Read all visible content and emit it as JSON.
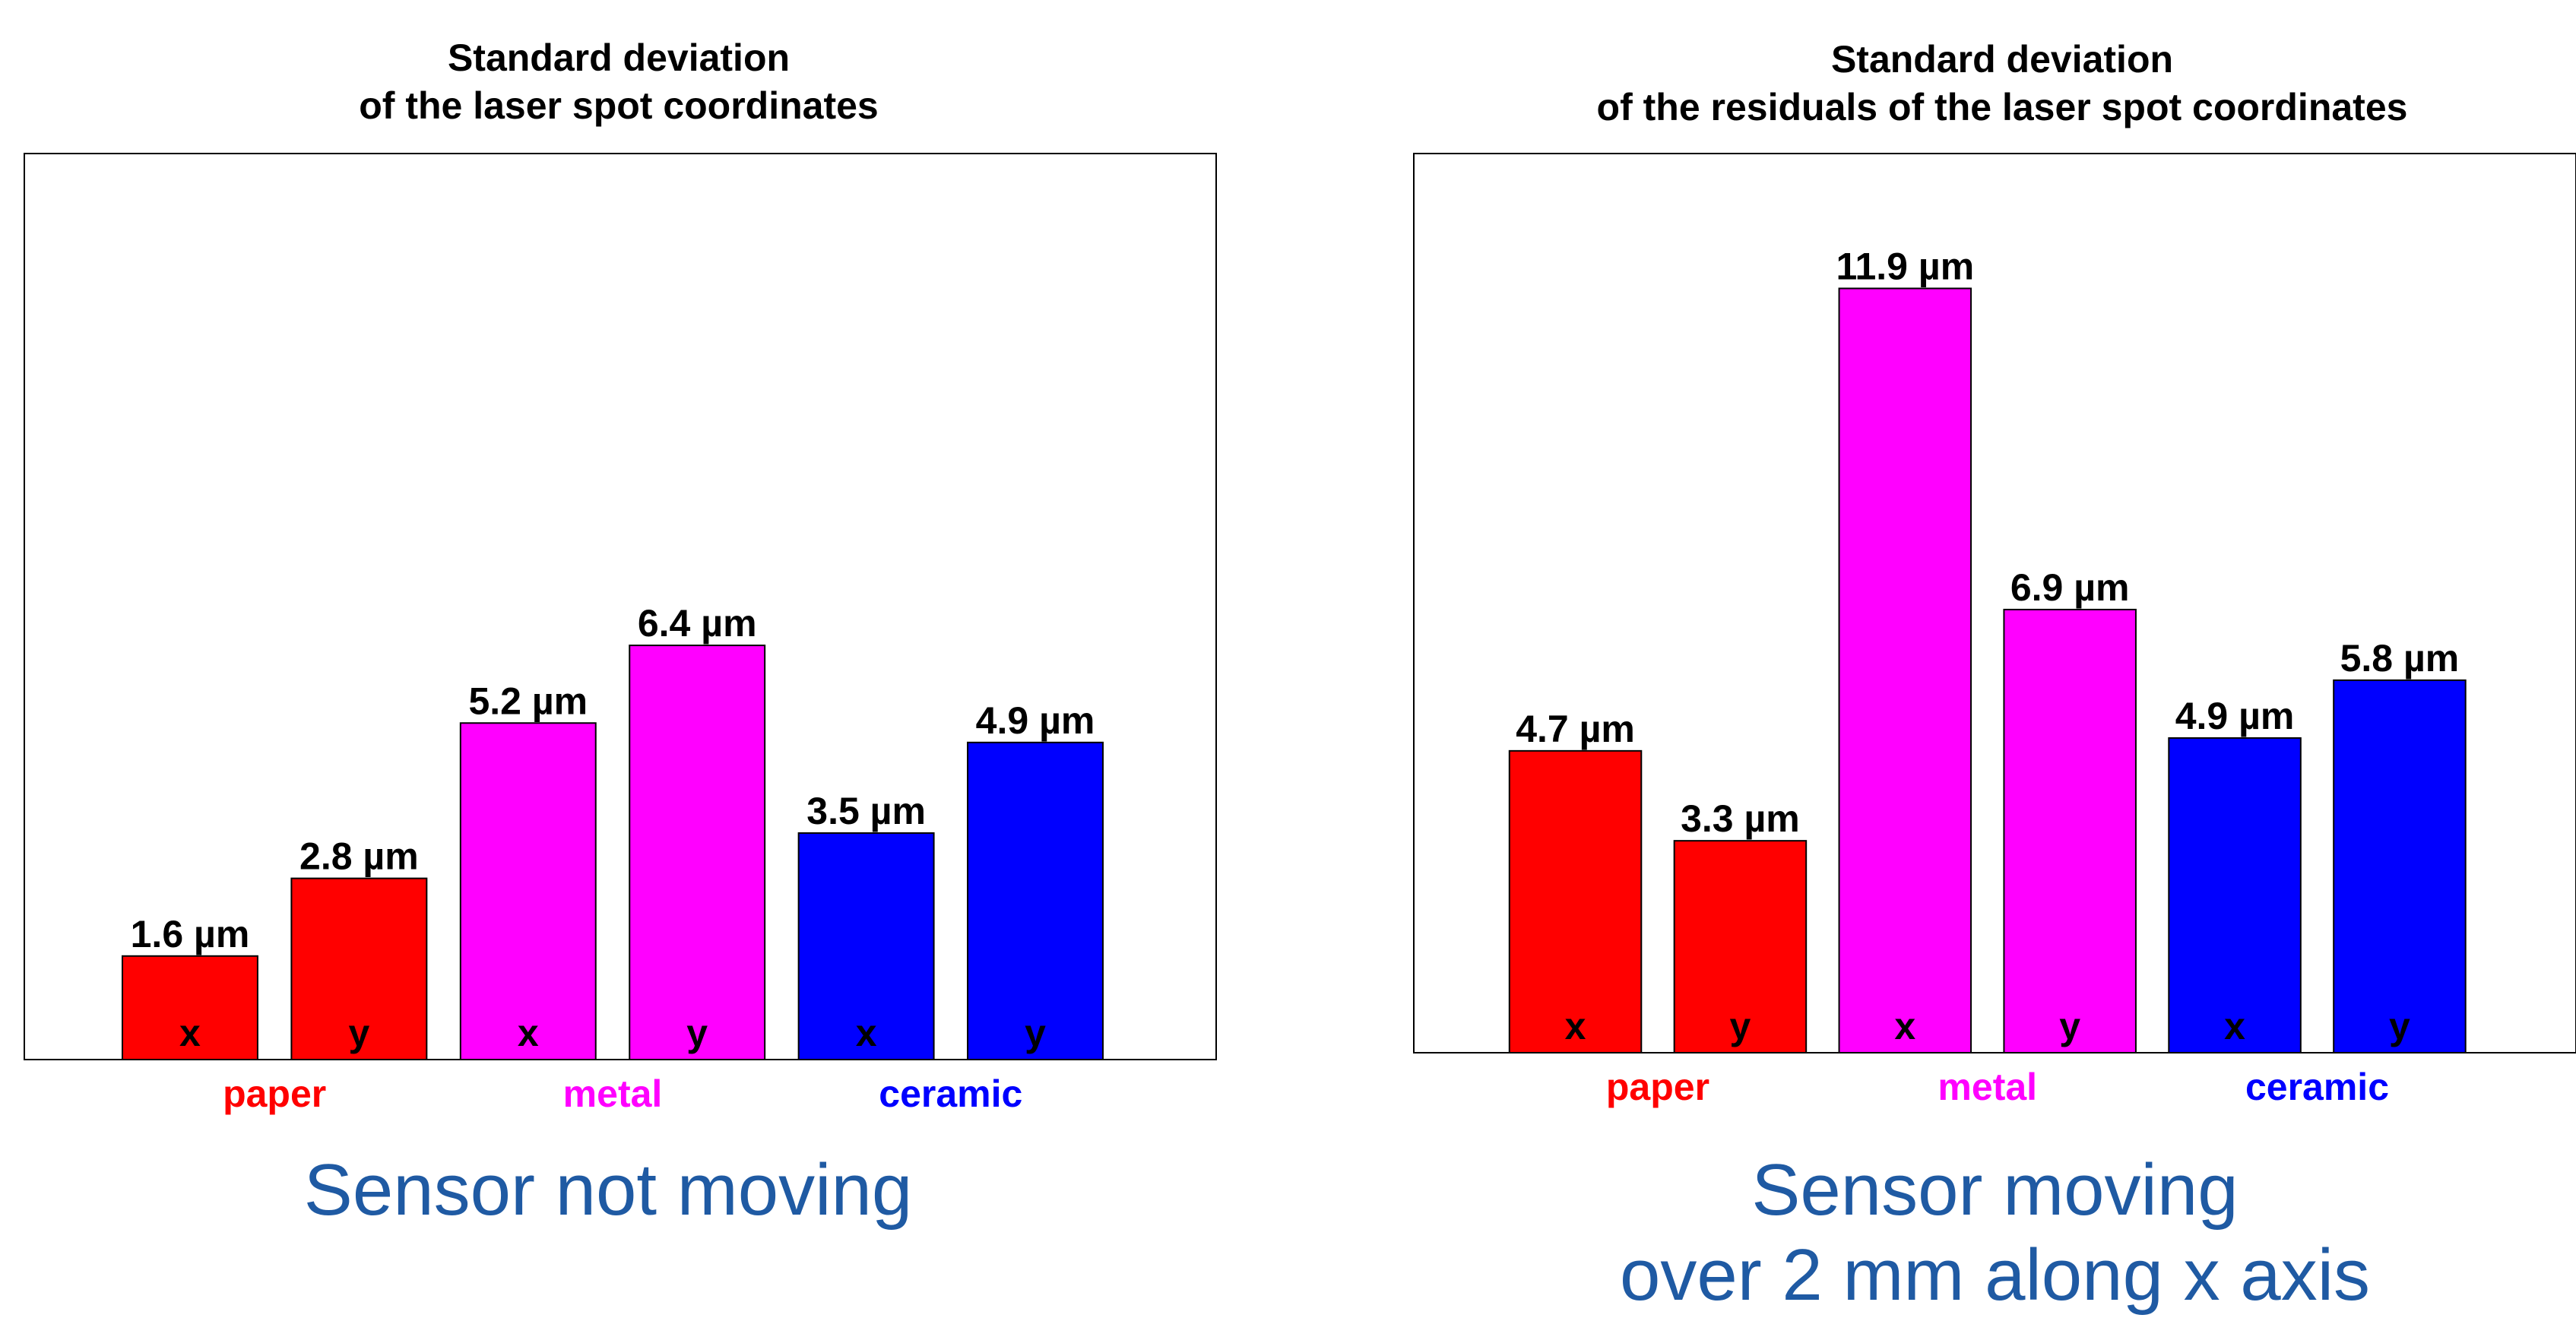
{
  "chart_data": [
    {
      "type": "bar",
      "title": [
        "Standard deviation",
        "of the laser spot coordinates"
      ],
      "unit": "µm",
      "groups": [
        {
          "name": "paper",
          "color": "#ff0000",
          "bars": [
            {
              "label": "x",
              "value": 1.6
            },
            {
              "label": "y",
              "value": 2.8
            }
          ]
        },
        {
          "name": "metal",
          "color": "#ff00ff",
          "bars": [
            {
              "label": "x",
              "value": 5.2
            },
            {
              "label": "y",
              "value": 6.4
            }
          ]
        },
        {
          "name": "ceramic",
          "color": "#0000ff",
          "bars": [
            {
              "label": "x",
              "value": 3.5
            },
            {
              "label": "y",
              "value": 4.9
            }
          ]
        }
      ],
      "data_labels": [
        "1.6 µm",
        "2.8 µm",
        "5.2 µm",
        "6.4 µm",
        "3.5 µm",
        "4.9 µm"
      ],
      "ylim": [
        0,
        14
      ],
      "grid": false
    },
    {
      "type": "bar",
      "title": [
        "Standard deviation",
        "of the residuals of the laser spot coordinates"
      ],
      "unit": "µm",
      "groups": [
        {
          "name": "paper",
          "color": "#ff0000",
          "bars": [
            {
              "label": "x",
              "value": 4.7
            },
            {
              "label": "y",
              "value": 3.3
            }
          ]
        },
        {
          "name": "metal",
          "color": "#ff00ff",
          "bars": [
            {
              "label": "x",
              "value": 11.9
            },
            {
              "label": "y",
              "value": 6.9
            }
          ]
        },
        {
          "name": "ceramic",
          "color": "#0000ff",
          "bars": [
            {
              "label": "x",
              "value": 4.9
            },
            {
              "label": "y",
              "value": 5.8
            }
          ]
        }
      ],
      "data_labels": [
        "4.7 µm",
        "3.3 µm",
        "11.9 µm",
        "6.9 µm",
        "4.9 µm",
        "5.8 µm"
      ],
      "ylim": [
        0,
        14
      ],
      "grid": false
    }
  ],
  "captions": {
    "left": [
      "Sensor not moving"
    ],
    "right": [
      "Sensor moving",
      "over 2 mm along x axis"
    ]
  }
}
